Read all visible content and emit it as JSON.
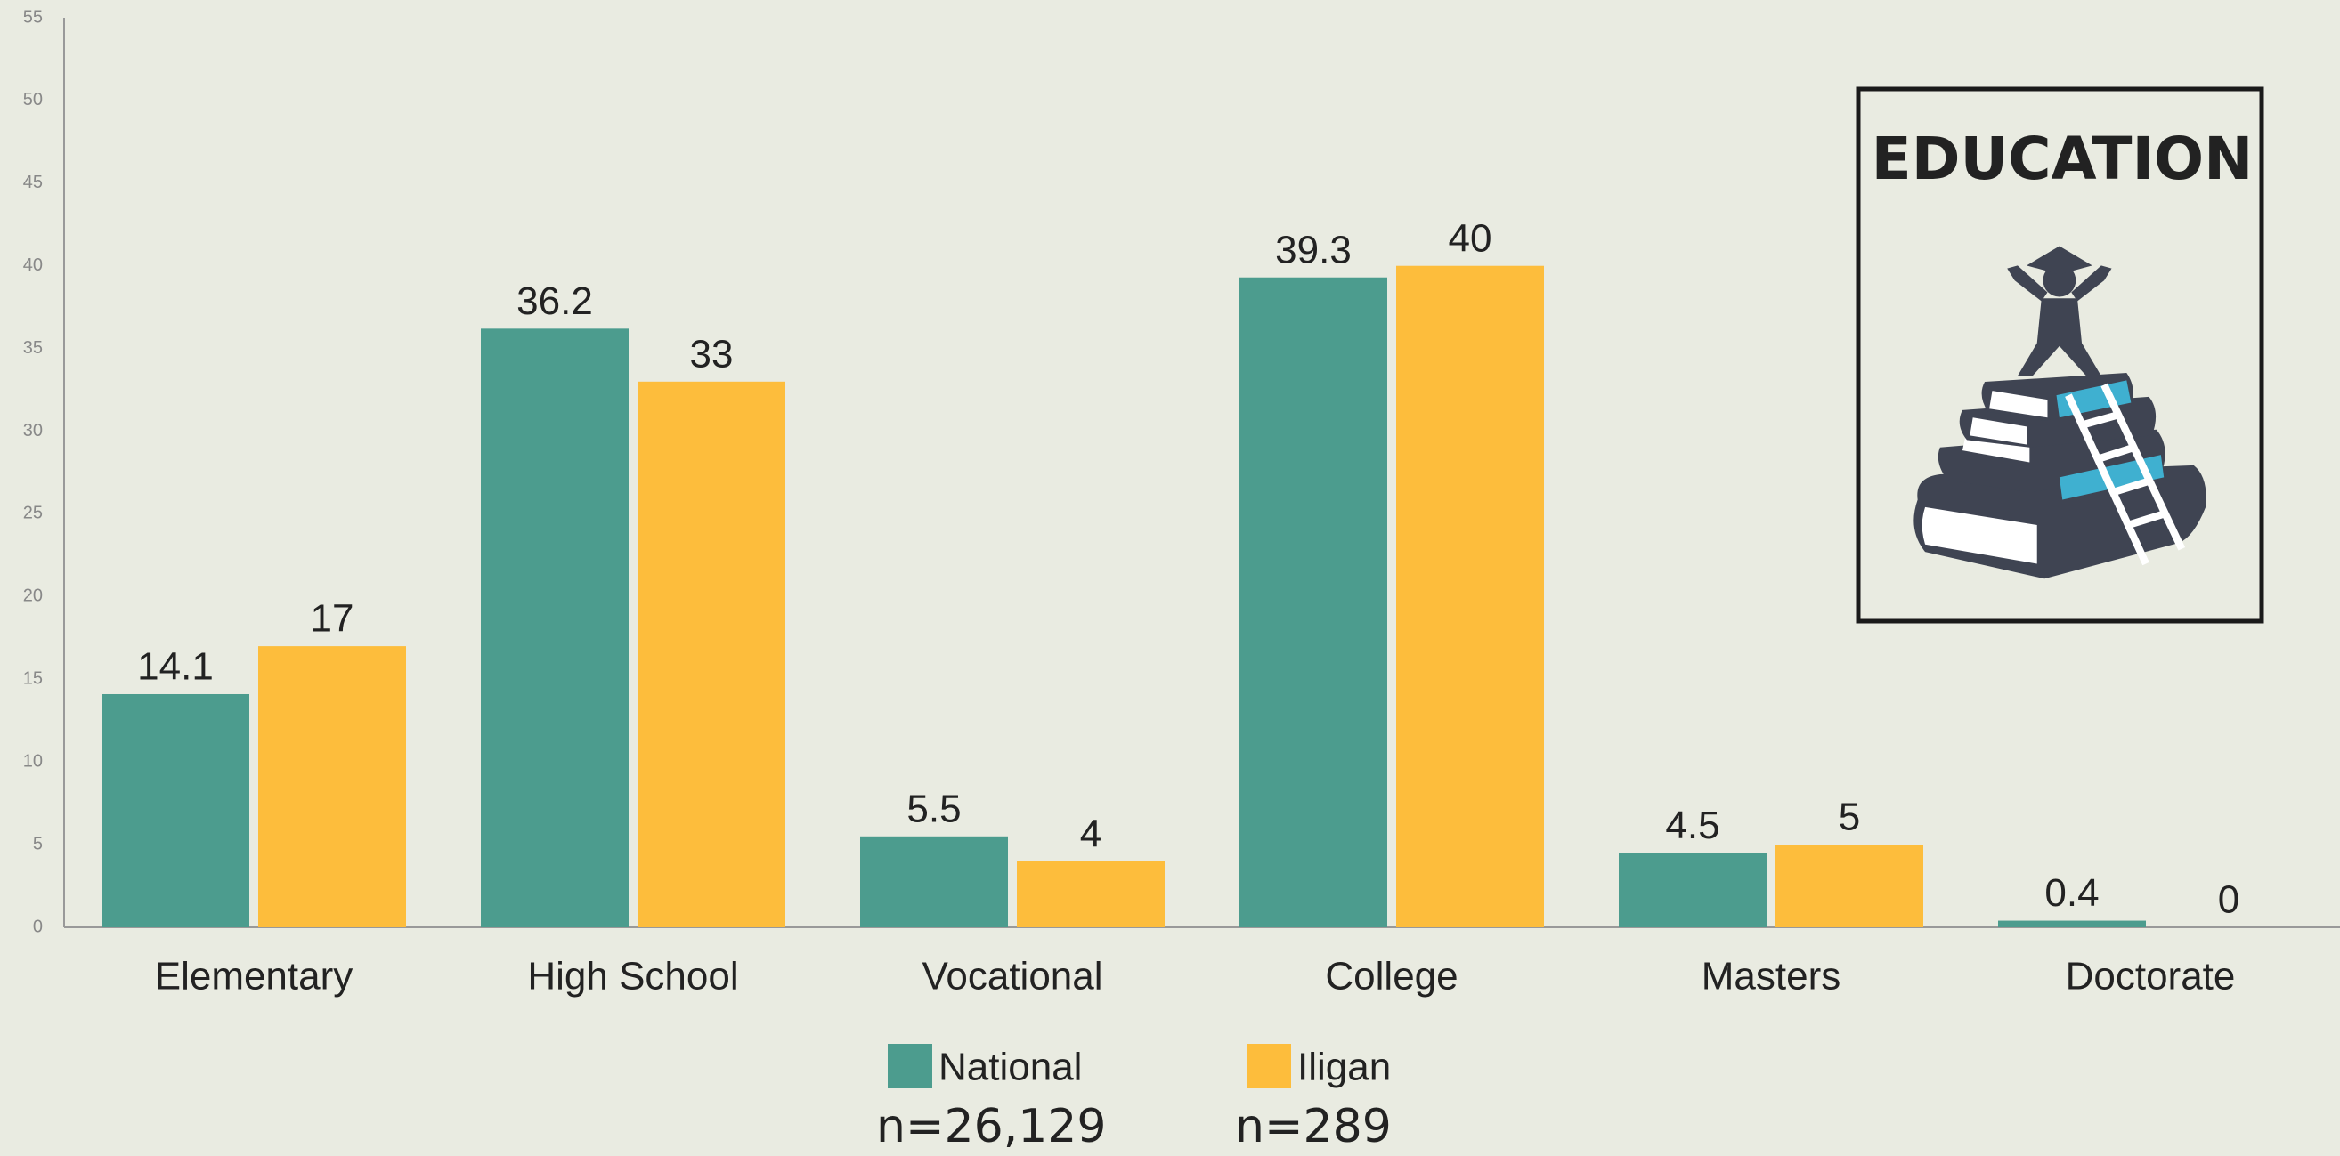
{
  "chart_data": {
    "type": "bar",
    "title": "EDUCATION",
    "categories": [
      "Elementary",
      "High School",
      "Vocational",
      "College",
      "Masters",
      "Doctorate"
    ],
    "series": [
      {
        "name": "National",
        "color": "#4c9c8e",
        "values": [
          14.1,
          36.2,
          5.5,
          39.3,
          4.5,
          0.4
        ]
      },
      {
        "name": "Iligan",
        "color": "#fdbd3c",
        "values": [
          17,
          33,
          4,
          40,
          5,
          0
        ]
      }
    ],
    "sample_sizes": [
      "n=26,129",
      "n=289"
    ],
    "ylim": [
      0,
      55
    ],
    "yticks": [
      0,
      5,
      10,
      15,
      20,
      25,
      30,
      35,
      40,
      45,
      50,
      55
    ],
    "grid": false,
    "legend": "bottom"
  }
}
